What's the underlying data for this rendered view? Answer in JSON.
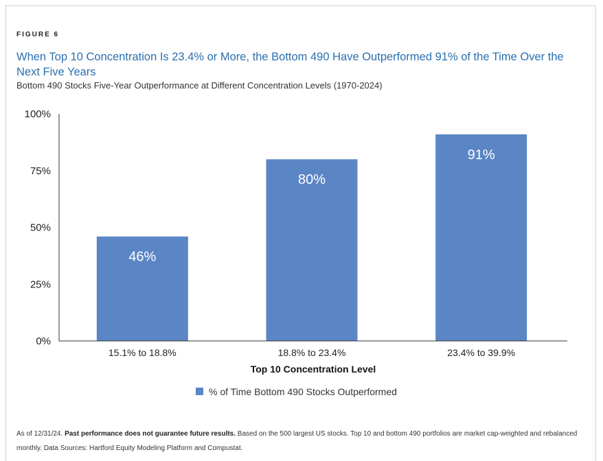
{
  "figure_label": "FIGURE 6",
  "title": "When Top 10 Concentration Is 23.4% or More, the Bottom 490 Have Outperformed 91% of the Time Over the Next Five Years",
  "subtitle": "Bottom 490 Stocks Five-Year Outperformance at Different Concentration Levels (1970-2024)",
  "chart_data": {
    "type": "bar",
    "categories": [
      "15.1% to 18.8%",
      "18.8% to 23.4%",
      "23.4% to 39.9%"
    ],
    "series": [
      {
        "name": "% of Time Bottom 490 Stocks Outperformed",
        "values": [
          46,
          80,
          91
        ],
        "labels": [
          "46%",
          "80%",
          "91%"
        ]
      }
    ],
    "xlabel": "Top 10 Concentration Level",
    "ylabel": "",
    "ylim": [
      0,
      100
    ],
    "yticks": [
      0,
      25,
      50,
      75,
      100
    ],
    "ytick_labels": [
      "0%",
      "25%",
      "50%",
      "75%",
      "100%"
    ],
    "grid": false,
    "legend_position": "bottom",
    "bar_color": "#5b86c5"
  },
  "footnote": {
    "prefix": "As of 12/31/24. ",
    "bold": "Past performance does not guarantee future results.",
    "rest": " Based on the 500 largest US stocks. Top 10 and bottom 490 portfolios are market cap-weighted and rebalanced monthly. Data Sources: Hartford Equity Modeling Platform and Compustat."
  }
}
